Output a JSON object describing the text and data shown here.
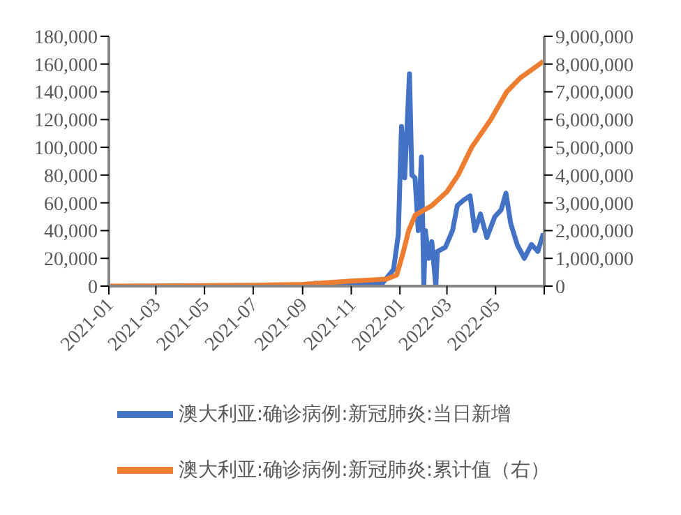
{
  "chart_data": {
    "type": "line",
    "x": [
      "2021-09-15",
      "2021-11-01",
      "2021-12-10",
      "2021-12-24",
      "2021-12-30",
      "2022-01-03",
      "2022-01-07",
      "2022-01-13",
      "2022-01-16",
      "2022-01-20",
      "2022-01-24",
      "2022-01-28",
      "2022-01-31",
      "2022-02-02",
      "2022-02-06",
      "2022-02-10",
      "2022-02-15",
      "2022-02-17",
      "2022-02-27",
      "2022-03-08",
      "2022-03-14",
      "2022-03-22",
      "2022-03-30",
      "2022-04-05",
      "2022-04-12",
      "2022-04-20",
      "2022-04-30",
      "2022-05-08",
      "2022-05-14",
      "2022-05-20",
      "2022-05-28",
      "2022-06-06",
      "2022-06-15",
      "2022-06-23",
      "2022-06-30"
    ],
    "series": [
      {
        "name": "澳大利亚:确诊病例:新冠肺炎:当日新增",
        "color": "#4472c4",
        "values": [
          2000,
          1000,
          2000,
          12000,
          37000,
          115000,
          78000,
          153000,
          80000,
          78000,
          40000,
          93000,
          0,
          40000,
          20000,
          32000,
          0,
          25000,
          28000,
          40000,
          58000,
          62000,
          65000,
          40000,
          52000,
          35000,
          50000,
          55000,
          67000,
          45000,
          30000,
          20000,
          30000,
          25000,
          38000
        ]
      },
      {
        "name": "澳大利亚:确诊病例:新冠肺炎:累计值（右）",
        "color": "#ed7d31",
        "axis": "y2",
        "x": [
          "2021-01-01",
          "2021-07-01",
          "2021-09-01",
          "2021-11-01",
          "2021-12-15",
          "2021-12-28",
          "2022-01-05",
          "2022-01-12",
          "2022-01-20",
          "2022-02-10",
          "2022-03-01",
          "2022-03-15",
          "2022-04-01",
          "2022-04-25",
          "2022-05-15",
          "2022-06-01",
          "2022-06-30"
        ],
        "values": [
          0,
          30000,
          60000,
          180000,
          250000,
          400000,
          1200000,
          2000000,
          2550000,
          2900000,
          3400000,
          4000000,
          5000000,
          6000000,
          7000000,
          7500000,
          8100000
        ]
      }
    ],
    "xlim": [
      "2021-01-01",
      "2022-07-01"
    ],
    "xticks": [
      {
        "value": "2021-01",
        "label": "2021-01"
      },
      {
        "value": "2021-03",
        "label": "2021-03"
      },
      {
        "value": "2021-05",
        "label": "2021-05"
      },
      {
        "value": "2021-07",
        "label": "2021-07"
      },
      {
        "value": "2021-09",
        "label": "2021-09"
      },
      {
        "value": "2021-11",
        "label": "2021-11"
      },
      {
        "value": "2022-01",
        "label": "2022-01"
      },
      {
        "value": "2022-03",
        "label": "2022-03"
      },
      {
        "value": "2022-05",
        "label": "2022-05"
      },
      {
        "value": "2022-07",
        "label": null
      }
    ],
    "ylim": [
      0,
      180000
    ],
    "yticks": [
      0,
      {
        "value": 20000,
        "label": "20,000"
      },
      {
        "value": 40000,
        "label": "40,000"
      },
      {
        "value": 60000,
        "label": "60,000"
      },
      {
        "value": 80000,
        "label": "80,000"
      },
      {
        "value": 100000,
        "label": "100,000"
      },
      {
        "value": 120000,
        "label": "120,000"
      },
      {
        "value": 140000,
        "label": "140,000"
      },
      {
        "value": 160000,
        "label": "160,000"
      },
      {
        "value": 180000,
        "label": "180,000"
      }
    ],
    "y2lim": [
      0,
      9000000
    ],
    "y2ticks": [
      0,
      {
        "value": 1000000,
        "label": "1,000,000"
      },
      {
        "value": 2000000,
        "label": "2,000,000"
      },
      {
        "value": 3000000,
        "label": "3,000,000"
      },
      {
        "value": 4000000,
        "label": "4,000,000"
      },
      {
        "value": 5000000,
        "label": "5,000,000"
      },
      {
        "value": 6000000,
        "label": "6,000,000"
      },
      {
        "value": 7000000,
        "label": "7,000,000"
      },
      {
        "value": 8000000,
        "label": "8,000,000"
      },
      {
        "value": 9000000,
        "label": "9,000,000"
      }
    ],
    "grid": false,
    "legend": "bottom",
    "marker": "none",
    "line_style": "solid"
  }
}
